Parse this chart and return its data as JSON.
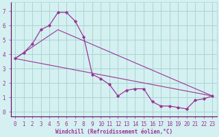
{
  "background_color": "#d4f0f0",
  "grid_color": "#aad4d4",
  "line_color": "#993399",
  "axis_line_color": "#660066",
  "xlabel": "Windchill (Refroidissement éolien,°C)",
  "ylabel_ticks": [
    0,
    1,
    2,
    3,
    4,
    5,
    6,
    7
  ],
  "xlabel_ticks": [
    0,
    1,
    2,
    3,
    4,
    5,
    6,
    7,
    8,
    9,
    10,
    11,
    12,
    13,
    14,
    15,
    16,
    17,
    18,
    19,
    20,
    21,
    22,
    23
  ],
  "xlim": [
    -0.5,
    23.5
  ],
  "ylim": [
    -0.3,
    7.6
  ],
  "series1_x": [
    0,
    1,
    2,
    3,
    4,
    5,
    6,
    7,
    8,
    9,
    10,
    11,
    12,
    13,
    14,
    15,
    16,
    17,
    18,
    19,
    20,
    21,
    22,
    23
  ],
  "series1_y": [
    3.7,
    4.1,
    4.7,
    5.7,
    6.0,
    6.9,
    6.9,
    6.3,
    5.2,
    2.6,
    2.3,
    1.9,
    1.1,
    1.5,
    1.6,
    1.6,
    0.7,
    0.4,
    0.4,
    0.3,
    0.2,
    0.8,
    0.9,
    1.1
  ],
  "line1_x": [
    0,
    23
  ],
  "line1_y": [
    3.7,
    1.1
  ],
  "line2_x": [
    0,
    5,
    23
  ],
  "line2_y": [
    3.7,
    5.7,
    1.1
  ],
  "tick_fontsize": 5.5,
  "xlabel_fontsize": 5.5,
  "fig_width": 3.2,
  "fig_height": 2.0,
  "dpi": 100
}
